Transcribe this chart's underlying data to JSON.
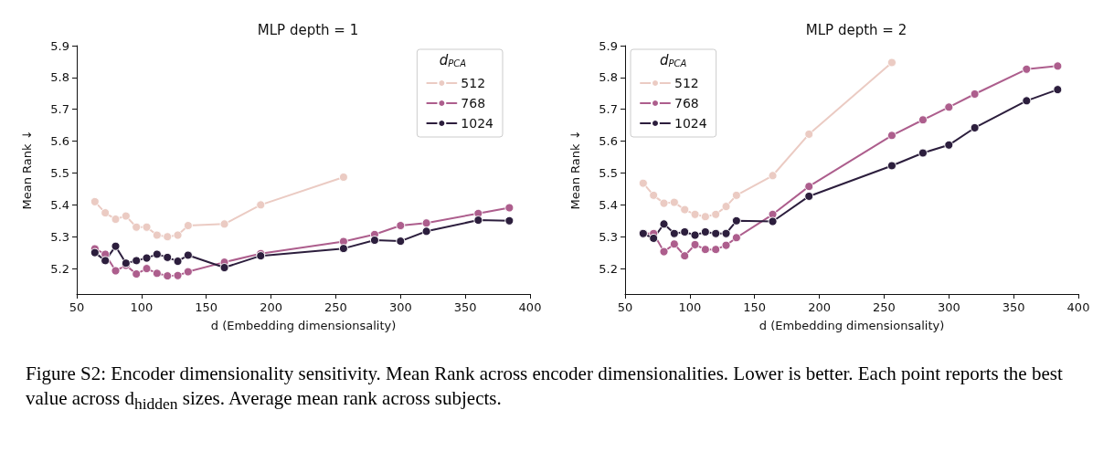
{
  "chart_data": [
    {
      "type": "line",
      "title": "MLP depth = 1",
      "xlabel": "d (Embedding dimensionsality)",
      "ylabel": "Mean Rank ↓",
      "legend_title": "d$_{PCA}$",
      "legend": "top right",
      "marker": "circle",
      "line_style": "solid",
      "xlim": [
        50,
        400
      ],
      "xticks": [
        50,
        100,
        150,
        200,
        250,
        300,
        350,
        400
      ],
      "ylim": [
        5.12,
        5.9
      ],
      "yticks": [
        5.2,
        5.3,
        5.4,
        5.5,
        5.6,
        5.7,
        5.8,
        5.9
      ],
      "series": [
        {
          "name": "512",
          "color": "#ebcbc3",
          "x": [
            64,
            72,
            80,
            88,
            96,
            104,
            112,
            120,
            128,
            136,
            164,
            192,
            256
          ],
          "values": [
            5.41,
            5.375,
            5.355,
            5.365,
            5.33,
            5.33,
            5.305,
            5.3,
            5.305,
            5.335,
            5.34,
            5.4,
            5.487
          ]
        },
        {
          "name": "768",
          "color": "#ad5e8d",
          "x": [
            64,
            72,
            80,
            88,
            96,
            104,
            112,
            120,
            128,
            136,
            164,
            192,
            256,
            280,
            300,
            320,
            360,
            384
          ],
          "values": [
            5.262,
            5.245,
            5.193,
            5.21,
            5.183,
            5.2,
            5.185,
            5.177,
            5.178,
            5.19,
            5.22,
            5.247,
            5.285,
            5.307,
            5.335,
            5.343,
            5.373,
            5.391
          ]
        },
        {
          "name": "1024",
          "color": "#2c1e3d",
          "x": [
            64,
            72,
            80,
            88,
            96,
            104,
            112,
            120,
            128,
            136,
            164,
            192,
            256,
            280,
            300,
            320,
            360,
            384
          ],
          "values": [
            5.25,
            5.225,
            5.27,
            5.217,
            5.225,
            5.233,
            5.245,
            5.235,
            5.223,
            5.242,
            5.203,
            5.24,
            5.263,
            5.289,
            5.286,
            5.317,
            5.352,
            5.35
          ]
        }
      ],
      "annotations": [
        "Figure S2: Encoder dimensionality sensitivity. Mean Rank across encoder dimensionalities. Lower is better. Each point reports the best value across d$_{hidden}$ sizes. Average mean rank across subjects."
      ]
    },
    {
      "type": "line",
      "title": "MLP depth = 2",
      "xlabel": "d (Embedding dimensionsality)",
      "ylabel": "Mean Rank ↓",
      "legend_title": "d$_{PCA}$",
      "legend": "top left",
      "marker": "circle",
      "line_style": "solid",
      "xlim": [
        50,
        400
      ],
      "xticks": [
        50,
        100,
        150,
        200,
        250,
        300,
        350,
        400
      ],
      "ylim": [
        5.12,
        5.9
      ],
      "yticks": [
        5.2,
        5.3,
        5.4,
        5.5,
        5.6,
        5.7,
        5.8,
        5.9
      ],
      "series": [
        {
          "name": "512",
          "color": "#ebcbc3",
          "x": [
            64,
            72,
            80,
            88,
            96,
            104,
            112,
            120,
            128,
            136,
            164,
            192,
            256
          ],
          "values": [
            5.468,
            5.43,
            5.405,
            5.408,
            5.385,
            5.37,
            5.363,
            5.37,
            5.395,
            5.43,
            5.492,
            5.622,
            5.847
          ]
        },
        {
          "name": "768",
          "color": "#ad5e8d",
          "x": [
            64,
            72,
            80,
            88,
            96,
            104,
            112,
            120,
            128,
            136,
            164,
            192,
            256,
            280,
            300,
            320,
            360,
            384
          ],
          "values": [
            5.31,
            5.31,
            5.253,
            5.277,
            5.24,
            5.275,
            5.26,
            5.26,
            5.273,
            5.297,
            5.37,
            5.458,
            5.618,
            5.667,
            5.707,
            5.748,
            5.826,
            5.836
          ]
        },
        {
          "name": "1024",
          "color": "#2c1e3d",
          "x": [
            64,
            72,
            80,
            88,
            96,
            104,
            112,
            120,
            128,
            136,
            164,
            192,
            256,
            280,
            300,
            320,
            360,
            384
          ],
          "values": [
            5.31,
            5.295,
            5.34,
            5.31,
            5.315,
            5.305,
            5.315,
            5.31,
            5.31,
            5.35,
            5.348,
            5.427,
            5.523,
            5.563,
            5.588,
            5.642,
            5.727,
            5.762
          ]
        }
      ]
    }
  ]
}
